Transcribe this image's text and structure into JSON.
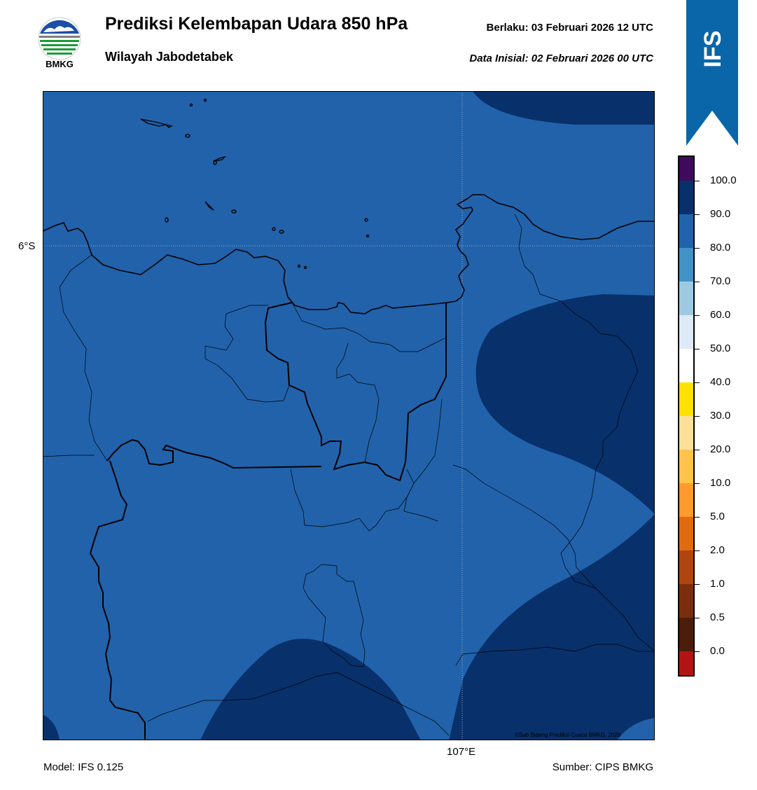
{
  "header": {
    "title": "Prediksi Kelembapan Udara 850 hPa",
    "subtitle": "Wilayah Jabodetabek",
    "valid_label": "Berlaku:  03 Februari 2026 12 UTC",
    "init_label": "Data Inisial:  02 Februari 2026 00 UTC"
  },
  "logo": {
    "text": "BMKG",
    "icon": "bmkg-logo"
  },
  "ribbon": {
    "text": "IFS",
    "color": "#0a66a8"
  },
  "map": {
    "lat_label": "6°S",
    "lon_label": "107°E",
    "copyright": "©Sub Bidang Prediksi Cuaca BMKG, 2026",
    "fill_colors": {
      "band_80_90": "#2162ab",
      "band_90_100": "#08306b"
    }
  },
  "footer": {
    "model": "Model: IFS 0.125",
    "source": "Sumber: CIPS BMKG"
  },
  "colorbar": {
    "labels": [
      "100.0",
      "90.0",
      "80.0",
      "70.0",
      "60.0",
      "50.0",
      "40.0",
      "30.0",
      "20.0",
      "10.0",
      "5.0",
      "2.0",
      "1.0",
      "0.5",
      "0.0"
    ],
    "colors": [
      "#3f0a5c",
      "#08306b",
      "#2162ab",
      "#4292c6",
      "#9ecae1",
      "#deebf7",
      "#ffffff",
      "#ffe100",
      "#ffe09a",
      "#ffc34d",
      "#ff9a2e",
      "#e06a10",
      "#b04510",
      "#7a2e0e",
      "#4a1e0a",
      "#b31515",
      "#e8392e"
    ]
  }
}
